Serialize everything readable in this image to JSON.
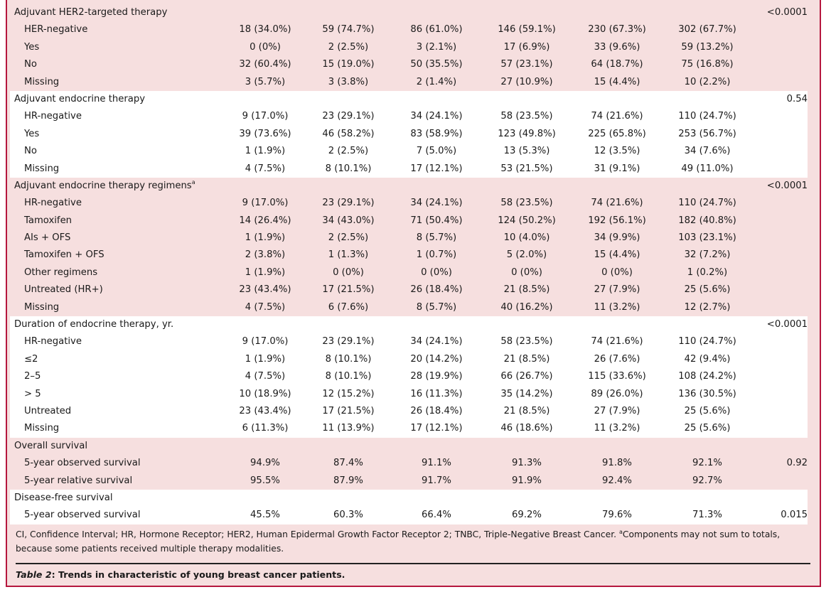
{
  "sections": [
    {
      "title": "Adjuvant HER2-targeted therapy",
      "sup": "",
      "p": "<0.0001",
      "white": false,
      "rows": [
        {
          "label": "HER-negative",
          "values": [
            "18 (34.0%)",
            "59 (74.7%)",
            "86 (61.0%)",
            "146 (59.1%)",
            "230 (67.3%)",
            "302 (67.7%)"
          ]
        },
        {
          "label": "Yes",
          "values": [
            "0 (0%)",
            "2 (2.5%)",
            "3 (2.1%)",
            "17 (6.9%)",
            "33 (9.6%)",
            "59 (13.2%)"
          ]
        },
        {
          "label": "No",
          "values": [
            "32 (60.4%)",
            "15 (19.0%)",
            "50 (35.5%)",
            "57 (23.1%)",
            "64 (18.7%)",
            "75 (16.8%)"
          ]
        },
        {
          "label": "Missing",
          "values": [
            "3 (5.7%)",
            "3 (3.8%)",
            "2 (1.4%)",
            "27 (10.9%)",
            "15 (4.4%)",
            "10 (2.2%)"
          ]
        }
      ]
    },
    {
      "title": "Adjuvant endocrine therapy",
      "sup": "",
      "p": "0.54",
      "white": true,
      "rows": [
        {
          "label": "HR-negative",
          "values": [
            "9 (17.0%)",
            "23 (29.1%)",
            "34 (24.1%)",
            "58 (23.5%)",
            "74 (21.6%)",
            "110 (24.7%)"
          ]
        },
        {
          "label": "Yes",
          "values": [
            "39 (73.6%)",
            "46 (58.2%)",
            "83 (58.9%)",
            "123 (49.8%)",
            "225 (65.8%)",
            "253 (56.7%)"
          ]
        },
        {
          "label": "No",
          "values": [
            "1 (1.9%)",
            "2 (2.5%)",
            "7 (5.0%)",
            "13 (5.3%)",
            "12 (3.5%)",
            "34 (7.6%)"
          ]
        },
        {
          "label": "Missing",
          "values": [
            "4 (7.5%)",
            "8 (10.1%)",
            "17 (12.1%)",
            "53 (21.5%)",
            "31 (9.1%)",
            "49 (11.0%)"
          ]
        }
      ]
    },
    {
      "title": "Adjuvant endocrine therapy regimens",
      "sup": "a",
      "p": "<0.0001",
      "white": false,
      "rows": [
        {
          "label": "HR-negative",
          "values": [
            "9 (17.0%)",
            "23 (29.1%)",
            "34 (24.1%)",
            "58 (23.5%)",
            "74 (21.6%)",
            "110 (24.7%)"
          ]
        },
        {
          "label": "Tamoxifen",
          "values": [
            "14 (26.4%)",
            "34 (43.0%)",
            "71 (50.4%)",
            "124 (50.2%)",
            "192 (56.1%)",
            "182 (40.8%)"
          ]
        },
        {
          "label": "AIs + OFS",
          "values": [
            "1 (1.9%)",
            "2 (2.5%)",
            "8 (5.7%)",
            "10 (4.0%)",
            "34 (9.9%)",
            "103 (23.1%)"
          ]
        },
        {
          "label": "Tamoxifen + OFS",
          "values": [
            "2 (3.8%)",
            "1 (1.3%)",
            "1 (0.7%)",
            "5 (2.0%)",
            "15 (4.4%)",
            "32 (7.2%)"
          ]
        },
        {
          "label": "Other regimens",
          "values": [
            "1 (1.9%)",
            "0 (0%)",
            "0 (0%)",
            "0 (0%)",
            "0 (0%)",
            "1 (0.2%)"
          ]
        },
        {
          "label": "Untreated (HR+)",
          "values": [
            "23 (43.4%)",
            "17 (21.5%)",
            "26 (18.4%)",
            "21 (8.5%)",
            "27 (7.9%)",
            "25 (5.6%)"
          ]
        },
        {
          "label": "Missing",
          "values": [
            "4 (7.5%)",
            "6 (7.6%)",
            "8 (5.7%)",
            "40 (16.2%)",
            "11 (3.2%)",
            "12 (2.7%)"
          ]
        }
      ]
    },
    {
      "title": "Duration of endocrine therapy, yr.",
      "sup": "",
      "p": "<0.0001",
      "white": true,
      "rows": [
        {
          "label": "HR-negative",
          "values": [
            "9 (17.0%)",
            "23 (29.1%)",
            "34 (24.1%)",
            "58 (23.5%)",
            "74 (21.6%)",
            "110 (24.7%)"
          ]
        },
        {
          "label": "≤2",
          "values": [
            "1 (1.9%)",
            "8 (10.1%)",
            "20 (14.2%)",
            "21 (8.5%)",
            "26 (7.6%)",
            "42 (9.4%)"
          ]
        },
        {
          "label": "2–5",
          "values": [
            "4 (7.5%)",
            "8 (10.1%)",
            "28 (19.9%)",
            "66 (26.7%)",
            "115 (33.6%)",
            "108 (24.2%)"
          ]
        },
        {
          "label": "> 5",
          "values": [
            "10 (18.9%)",
            "12 (15.2%)",
            "16 (11.3%)",
            "35 (14.2%)",
            "89 (26.0%)",
            "136 (30.5%)"
          ]
        },
        {
          "label": "Untreated",
          "values": [
            "23 (43.4%)",
            "17 (21.5%)",
            "26 (18.4%)",
            "21 (8.5%)",
            "27 (7.9%)",
            "25 (5.6%)"
          ]
        },
        {
          "label": "Missing",
          "values": [
            "6 (11.3%)",
            "11 (13.9%)",
            "17 (12.1%)",
            "46 (18.6%)",
            "11 (3.2%)",
            "25 (5.6%)"
          ]
        }
      ]
    },
    {
      "title": "Overall survival",
      "sup": "",
      "p": "",
      "white": false,
      "rows": [
        {
          "label": "5-year observed survival",
          "values": [
            "94.9%",
            "87.4%",
            "91.1%",
            "91.3%",
            "91.8%",
            "92.1%"
          ],
          "p": "0.92"
        },
        {
          "label": "5-year relative survival",
          "values": [
            "95.5%",
            "87.9%",
            "91.7%",
            "91.9%",
            "92.4%",
            "92.7%"
          ]
        }
      ]
    },
    {
      "title": "Disease-free survival",
      "sup": "",
      "p": "",
      "white": true,
      "rows": [
        {
          "label": "5-year observed survival",
          "values": [
            "45.5%",
            "60.3%",
            "66.4%",
            "69.2%",
            "79.6%",
            "71.3%"
          ],
          "p": "0.015"
        }
      ]
    }
  ],
  "footnote": {
    "text": "CI, Confidence Interval; HR, Hormone Receptor; HER2, Human Epidermal Growth Factor Receptor 2; TNBC, Triple-Negative Breast Cancer. ",
    "sup": "a",
    "note": "Components may not sum to totals, because some patients received multiple therapy modalities."
  },
  "caption": {
    "label": "Table 2",
    "text": ": Trends in characteristic of young breast cancer patients."
  }
}
